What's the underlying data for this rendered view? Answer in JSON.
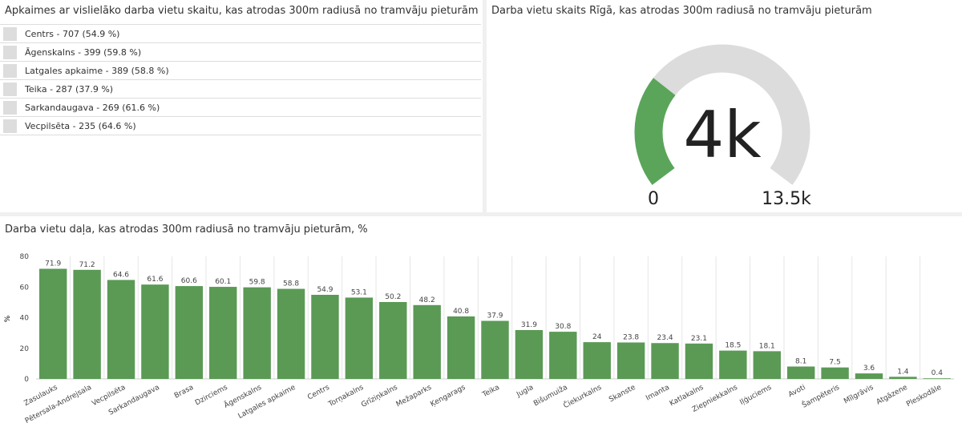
{
  "list_panel": {
    "title": "Apkaimes ar vislielāko darba vietu skaitu, kas atrodas 300m radiusā no tramvāju pieturām",
    "items": [
      "Centrs - 707 (54.9 %)",
      "Āgenskalns - 399 (59.8 %)",
      "Latgales apkaime - 389 (58.8 %)",
      "Teika - 287 (37.9 %)",
      "Sarkandaugava - 269 (61.6 %)",
      "Vecpilsēta - 235 (64.6 %)"
    ]
  },
  "gauge_panel": {
    "title": "Darba vietu skaits Rīgā, kas atrodas 300m radiusā no tramvāju pieturām",
    "value_label": "4k",
    "min_label": "0",
    "max_label": "13.5k",
    "value": 4000,
    "min": 0,
    "max": 13500,
    "fill_color": "#5aa55a",
    "track_color": "#dcdcdc"
  },
  "chart_panel": {
    "title": "Darba vietu daļa, kas atrodas 300m radiusā no tramvāju pieturām, %"
  },
  "chart_data": {
    "type": "bar",
    "ylabel": "%",
    "ylim": [
      0,
      80
    ],
    "yticks": [
      0,
      20,
      40,
      60,
      80
    ],
    "bar_color": "#5a9a55",
    "categories": [
      "Zasulauks",
      "Pētersala-Andrejsala",
      "Vecpilsēta",
      "Sarkandaugava",
      "Brasa",
      "Dzirciems",
      "Āgenskalns",
      "Latgales apkaime",
      "Centrs",
      "Torņakalns",
      "Grīziņkalns",
      "Mežaparks",
      "Ķengarags",
      "Teika",
      "Jugla",
      "Bišumuiža",
      "Čiekurkalns",
      "Skanste",
      "Imanta",
      "Katlakalns",
      "Ziepniekkalns",
      "Iļģuciems",
      "Avoti",
      "Šampēteris",
      "Mīlgrāvis",
      "Atgāzene",
      "Pleskodāle"
    ],
    "values": [
      71.9,
      71.2,
      64.6,
      61.6,
      60.6,
      60.1,
      59.8,
      58.8,
      54.9,
      53.1,
      50.2,
      48.2,
      40.8,
      37.9,
      31.9,
      30.8,
      24,
      23.8,
      23.4,
      23.1,
      18.5,
      18.1,
      8.1,
      7.5,
      3.6,
      1.4,
      0.4
    ]
  }
}
